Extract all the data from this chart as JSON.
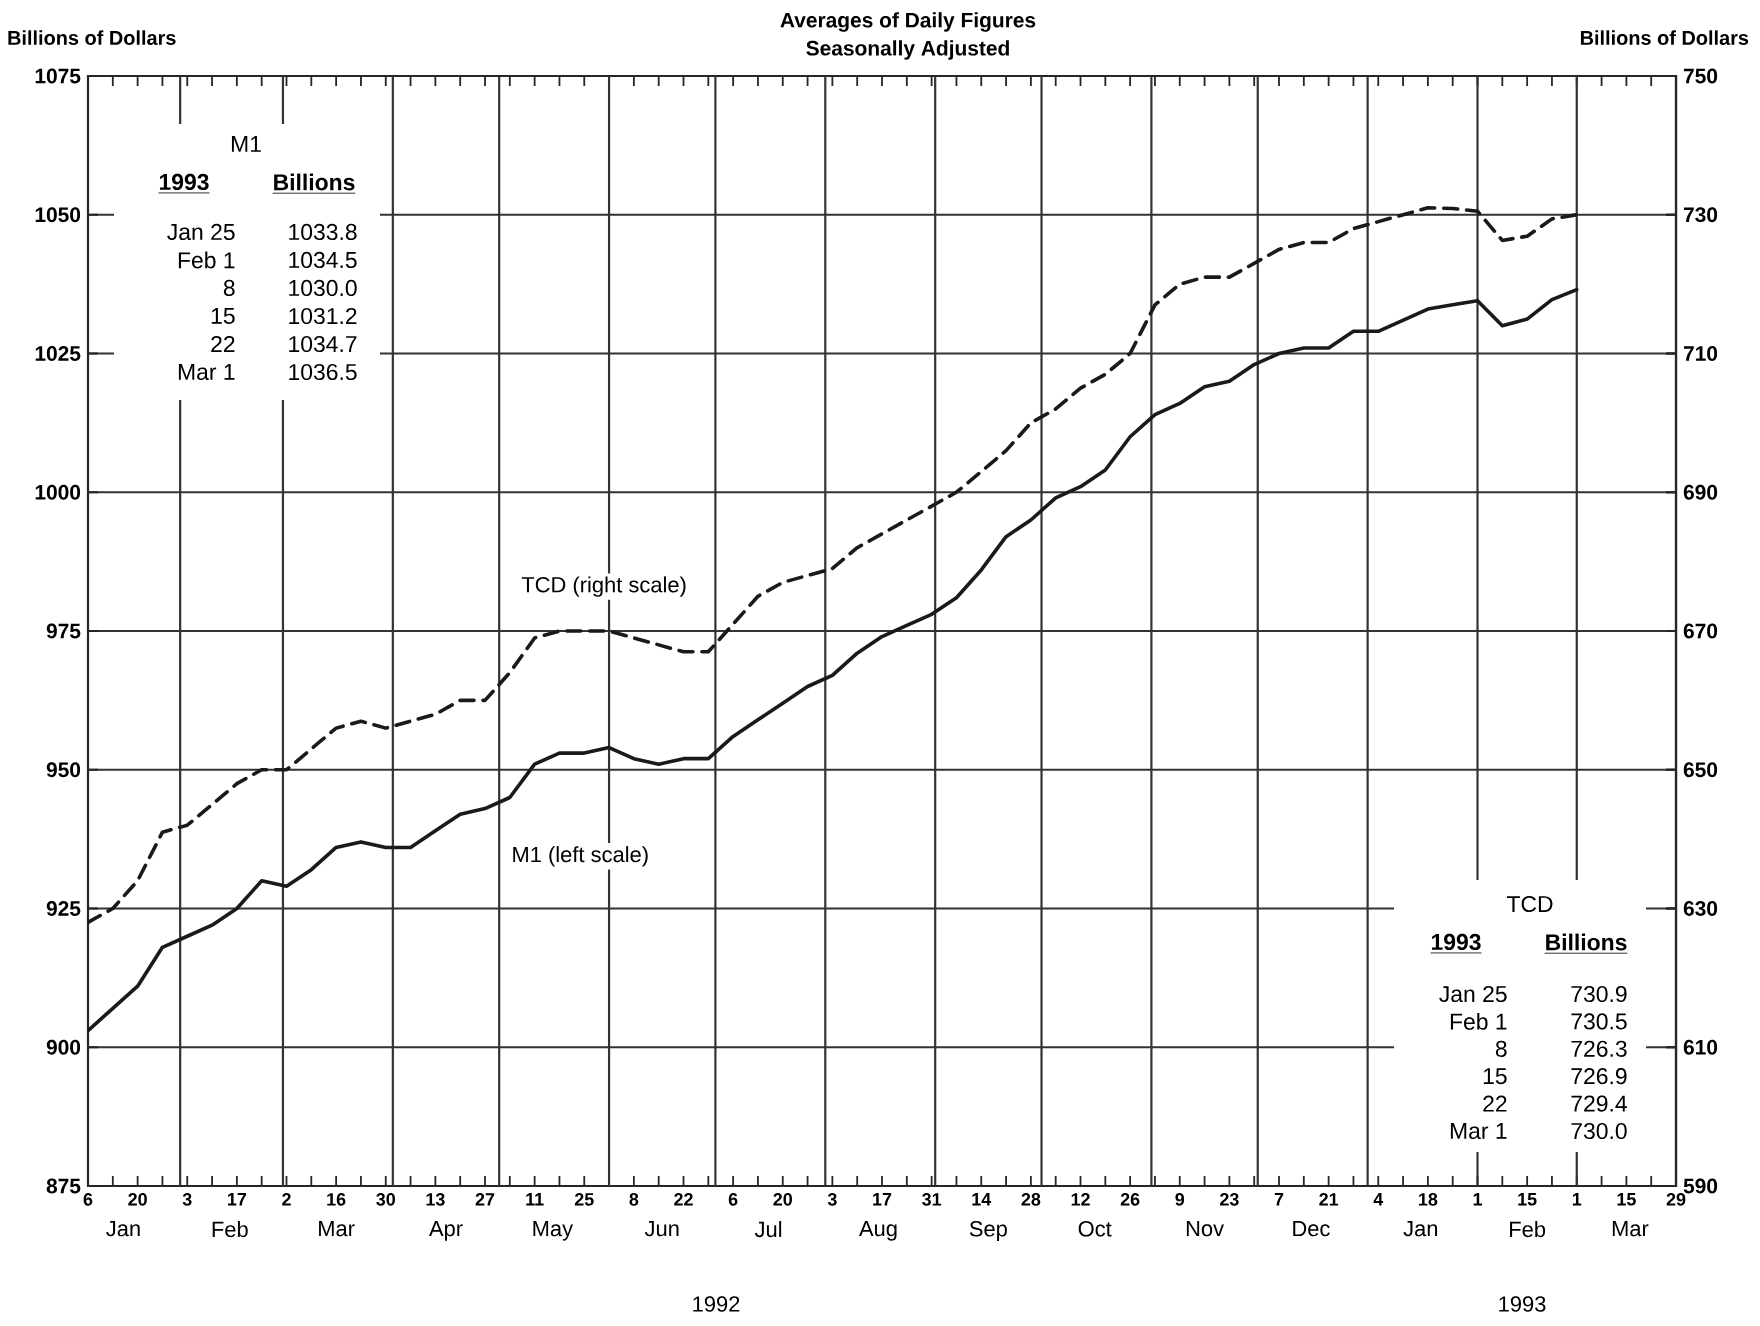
{
  "chart_data": {
    "type": "line",
    "title": "Averages of Daily Figures",
    "subtitle": "Seasonally Adjusted",
    "ylabel": "Billions of Dollars",
    "y2label": "Billions of Dollars",
    "x": [
      "1992-01-06",
      "1992-01-13",
      "1992-01-20",
      "1992-01-27",
      "1992-02-03",
      "1992-02-10",
      "1992-02-17",
      "1992-02-24",
      "1992-03-02",
      "1992-03-09",
      "1992-03-16",
      "1992-03-23",
      "1992-03-30",
      "1992-04-06",
      "1992-04-13",
      "1992-04-20",
      "1992-04-27",
      "1992-05-04",
      "1992-05-11",
      "1992-05-18",
      "1992-05-25",
      "1992-06-01",
      "1992-06-08",
      "1992-06-15",
      "1992-06-22",
      "1992-06-29",
      "1992-07-06",
      "1992-07-13",
      "1992-07-20",
      "1992-07-27",
      "1992-08-03",
      "1992-08-10",
      "1992-08-17",
      "1992-08-24",
      "1992-08-31",
      "1992-09-07",
      "1992-09-14",
      "1992-09-21",
      "1992-09-28",
      "1992-10-05",
      "1992-10-12",
      "1992-10-19",
      "1992-10-26",
      "1992-11-02",
      "1992-11-09",
      "1992-11-16",
      "1992-11-23",
      "1992-11-30",
      "1992-12-07",
      "1992-12-14",
      "1992-12-21",
      "1992-12-28",
      "1993-01-04",
      "1993-01-11",
      "1993-01-18",
      "1993-01-25",
      "1993-02-01",
      "1993-02-08",
      "1993-02-15",
      "1993-02-22",
      "1993-03-01"
    ],
    "series": [
      {
        "name": "M1 (left scale)",
        "color": "#1a1a1a",
        "axis": "y",
        "line_style": "solid",
        "values": [
          903,
          907,
          911,
          918,
          920,
          922,
          925,
          930,
          929,
          932,
          936,
          937,
          936,
          936,
          939,
          942,
          943,
          945,
          951,
          953,
          953,
          954,
          952,
          951,
          952,
          952,
          956,
          959,
          962,
          965,
          967,
          971,
          974,
          976,
          978,
          981,
          986,
          992,
          995,
          999,
          1001,
          1004,
          1010,
          1014,
          1016,
          1019,
          1020,
          1023,
          1025,
          1026,
          1026,
          1029,
          1029,
          1031,
          1033,
          1033.8,
          1034.5,
          1030.0,
          1031.2,
          1034.7,
          1036.5
        ]
      },
      {
        "name": "TCD (right scale)",
        "color": "#1a1a1a",
        "axis": "y2",
        "line_style": "dashed",
        "values": [
          628,
          630,
          634,
          641,
          642,
          645,
          648,
          650,
          650,
          653,
          656,
          657,
          656,
          657,
          658,
          660,
          660,
          664,
          669,
          670,
          670,
          670,
          669,
          668,
          667,
          667,
          671,
          675,
          677,
          678,
          679,
          682,
          684,
          686,
          688,
          690,
          693,
          696,
          700,
          702,
          705,
          707,
          710,
          717,
          720,
          721,
          721,
          723,
          725,
          726,
          726,
          728,
          729,
          730,
          731,
          730.9,
          730.5,
          726.3,
          726.9,
          729.4,
          730.0
        ]
      }
    ],
    "xlim": [
      "1992-01-06",
      "1993-03-29"
    ],
    "xticks": [
      {
        "value": "1992-01-06",
        "label": "6"
      },
      {
        "value": "1992-01-13",
        "label": null
      },
      {
        "value": "1992-01-20",
        "label": "20"
      },
      {
        "value": "1992-01-27",
        "label": null
      },
      {
        "value": "1992-02-03",
        "label": "3"
      },
      {
        "value": "1992-02-10",
        "label": null
      },
      {
        "value": "1992-02-17",
        "label": "17"
      },
      {
        "value": "1992-02-24",
        "label": null
      },
      {
        "value": "1992-03-02",
        "label": "2"
      },
      {
        "value": "1992-03-09",
        "label": null
      },
      {
        "value": "1992-03-16",
        "label": "16"
      },
      {
        "value": "1992-03-23",
        "label": null
      },
      {
        "value": "1992-03-30",
        "label": "30"
      },
      {
        "value": "1992-04-06",
        "label": null
      },
      {
        "value": "1992-04-13",
        "label": "13"
      },
      {
        "value": "1992-04-20",
        "label": null
      },
      {
        "value": "1992-04-27",
        "label": "27"
      },
      {
        "value": "1992-05-04",
        "label": null
      },
      {
        "value": "1992-05-11",
        "label": "11"
      },
      {
        "value": "1992-05-18",
        "label": null
      },
      {
        "value": "1992-05-25",
        "label": "25"
      },
      {
        "value": "1992-06-01",
        "label": null
      },
      {
        "value": "1992-06-08",
        "label": "8"
      },
      {
        "value": "1992-06-15",
        "label": null
      },
      {
        "value": "1992-06-22",
        "label": "22"
      },
      {
        "value": "1992-06-29",
        "label": null
      },
      {
        "value": "1992-07-06",
        "label": "6"
      },
      {
        "value": "1992-07-13",
        "label": null
      },
      {
        "value": "1992-07-20",
        "label": "20"
      },
      {
        "value": "1992-07-27",
        "label": null
      },
      {
        "value": "1992-08-03",
        "label": "3"
      },
      {
        "value": "1992-08-10",
        "label": null
      },
      {
        "value": "1992-08-17",
        "label": "17"
      },
      {
        "value": "1992-08-24",
        "label": null
      },
      {
        "value": "1992-08-31",
        "label": "31"
      },
      {
        "value": "1992-09-07",
        "label": null
      },
      {
        "value": "1992-09-14",
        "label": "14"
      },
      {
        "value": "1992-09-21",
        "label": null
      },
      {
        "value": "1992-09-28",
        "label": "28"
      },
      {
        "value": "1992-10-05",
        "label": null
      },
      {
        "value": "1992-10-12",
        "label": "12"
      },
      {
        "value": "1992-10-19",
        "label": null
      },
      {
        "value": "1992-10-26",
        "label": "26"
      },
      {
        "value": "1992-11-02",
        "label": null
      },
      {
        "value": "1992-11-09",
        "label": "9"
      },
      {
        "value": "1992-11-16",
        "label": null
      },
      {
        "value": "1992-11-23",
        "label": "23"
      },
      {
        "value": "1992-11-30",
        "label": null
      },
      {
        "value": "1992-12-07",
        "label": "7"
      },
      {
        "value": "1992-12-14",
        "label": null
      },
      {
        "value": "1992-12-21",
        "label": "21"
      },
      {
        "value": "1992-12-28",
        "label": null
      },
      {
        "value": "1993-01-04",
        "label": "4"
      },
      {
        "value": "1993-01-11",
        "label": null
      },
      {
        "value": "1993-01-18",
        "label": "18"
      },
      {
        "value": "1993-01-25",
        "label": null
      },
      {
        "value": "1993-02-01",
        "label": "1"
      },
      {
        "value": "1993-02-08",
        "label": null
      },
      {
        "value": "1993-02-15",
        "label": "15"
      },
      {
        "value": "1993-02-22",
        "label": null
      },
      {
        "value": "1993-03-01",
        "label": "1"
      },
      {
        "value": "1993-03-08",
        "label": null
      },
      {
        "value": "1993-03-15",
        "label": "15"
      },
      {
        "value": "1993-03-22",
        "label": null
      },
      {
        "value": "1993-03-29",
        "label": "29"
      }
    ],
    "x2lim": [
      "1992-01-06",
      "1993-03-29"
    ],
    "x2ticks": [
      {
        "value": "1992-01-16",
        "label": "Jan"
      },
      {
        "value": "1992-02-15",
        "label": "Feb"
      },
      {
        "value": "1992-03-16",
        "label": "Mar"
      },
      {
        "value": "1992-04-16",
        "label": "Apr"
      },
      {
        "value": "1992-05-16",
        "label": "May"
      },
      {
        "value": "1992-06-16",
        "label": "Jun"
      },
      {
        "value": "1992-07-16",
        "label": "Jul"
      },
      {
        "value": "1992-08-16",
        "label": "Aug"
      },
      {
        "value": "1992-09-16",
        "label": "Sep"
      },
      {
        "value": "1992-10-16",
        "label": "Oct"
      },
      {
        "value": "1992-11-16",
        "label": "Nov"
      },
      {
        "value": "1992-12-16",
        "label": "Dec"
      },
      {
        "value": "1993-01-16",
        "label": "Jan"
      },
      {
        "value": "1993-02-15",
        "label": "Feb"
      },
      {
        "value": "1993-03-16",
        "label": "Mar"
      }
    ],
    "ylim": [
      875,
      1075
    ],
    "yticks": [
      875,
      900,
      925,
      950,
      975,
      1000,
      1025,
      1050,
      1075
    ],
    "y2lim": [
      590,
      750
    ],
    "y2ticks": [
      590,
      610,
      630,
      650,
      670,
      690,
      710,
      730,
      750
    ],
    "grid": "y",
    "ref_lines": [
      {
        "axis": "x",
        "value": "1992-02-01"
      },
      {
        "axis": "x",
        "value": "1992-03-01"
      },
      {
        "axis": "x",
        "value": "1992-04-01"
      },
      {
        "axis": "x",
        "value": "1992-05-01"
      },
      {
        "axis": "x",
        "value": "1992-06-01"
      },
      {
        "axis": "x",
        "value": "1992-07-01"
      },
      {
        "axis": "x",
        "value": "1992-08-01"
      },
      {
        "axis": "x",
        "value": "1992-09-01"
      },
      {
        "axis": "x",
        "value": "1992-10-01"
      },
      {
        "axis": "x",
        "value": "1992-11-01"
      },
      {
        "axis": "x",
        "value": "1992-12-01"
      },
      {
        "axis": "x",
        "value": "1993-01-01"
      },
      {
        "axis": "x",
        "value": "1993-02-01"
      },
      {
        "axis": "x",
        "value": "1993-03-01"
      }
    ],
    "annotations": [
      "M1",
      "1993",
      "Billions",
      "Jan 25",
      "1033.8",
      "Feb 1",
      "1034.5",
      "8",
      "1030.0",
      "15",
      "1031.2",
      "22",
      "1034.7",
      "Mar 1",
      "1036.5",
      "TCD",
      "1993",
      "Billions",
      "Jan 25",
      "730.9",
      "Feb 1",
      "730.5",
      "8",
      "726.3",
      "15",
      "726.9",
      "22",
      "729.4",
      "Mar 1",
      "730.0",
      "1992",
      "1993"
    ]
  }
}
